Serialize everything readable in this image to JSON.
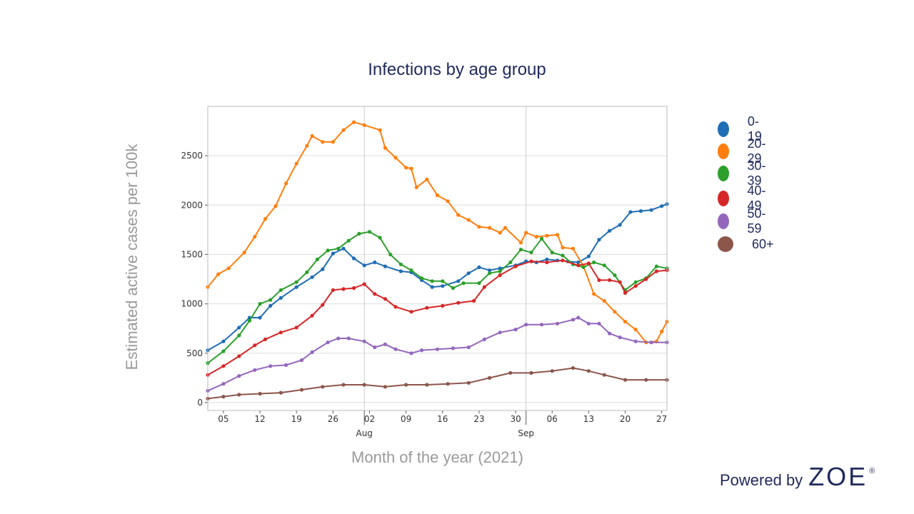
{
  "chart_data": {
    "type": "line",
    "title": "Infections by age group",
    "ylabel": "Estimated active cases per 100k",
    "xlabel": "Month of the year (2021)",
    "x_start": "2021-07-02",
    "x_end": "2021-09-28",
    "ylim": [
      -80,
      3000
    ],
    "yticks": [
      0,
      500,
      1000,
      1500,
      2000,
      2500
    ],
    "xticks": [
      {
        "date": "2021-07-05",
        "label": "05"
      },
      {
        "date": "2021-07-12",
        "label": "12"
      },
      {
        "date": "2021-07-19",
        "label": "19"
      },
      {
        "date": "2021-07-26",
        "label": "26"
      },
      {
        "date": "2021-08-02",
        "label": "02"
      },
      {
        "date": "2021-08-09",
        "label": "09"
      },
      {
        "date": "2021-08-16",
        "label": "16"
      },
      {
        "date": "2021-08-23",
        "label": "23"
      },
      {
        "date": "2021-08-30",
        "label": "30"
      },
      {
        "date": "2021-09-06",
        "label": "06"
      },
      {
        "date": "2021-09-13",
        "label": "13"
      },
      {
        "date": "2021-09-20",
        "label": "20"
      },
      {
        "date": "2021-09-27",
        "label": "27"
      }
    ],
    "month_labels": [
      {
        "date": "2021-08-01",
        "label": "Aug"
      },
      {
        "date": "2021-09-01",
        "label": "Sep"
      }
    ],
    "grid": true,
    "legend_position": "right",
    "series": [
      {
        "name": "0-19",
        "color": "#1f6db5",
        "points": [
          [
            "2021-07-02",
            530
          ],
          [
            "2021-07-05",
            620
          ],
          [
            "2021-07-08",
            760
          ],
          [
            "2021-07-10",
            860
          ],
          [
            "2021-07-12",
            860
          ],
          [
            "2021-07-14",
            980
          ],
          [
            "2021-07-16",
            1060
          ],
          [
            "2021-07-19",
            1170
          ],
          [
            "2021-07-22",
            1270
          ],
          [
            "2021-07-24",
            1350
          ],
          [
            "2021-07-26",
            1510
          ],
          [
            "2021-07-28",
            1560
          ],
          [
            "2021-07-30",
            1460
          ],
          [
            "2021-08-01",
            1390
          ],
          [
            "2021-08-03",
            1420
          ],
          [
            "2021-08-05",
            1380
          ],
          [
            "2021-08-08",
            1330
          ],
          [
            "2021-08-10",
            1320
          ],
          [
            "2021-08-12",
            1240
          ],
          [
            "2021-08-14",
            1170
          ],
          [
            "2021-08-16",
            1180
          ],
          [
            "2021-08-19",
            1230
          ],
          [
            "2021-08-21",
            1310
          ],
          [
            "2021-08-23",
            1370
          ],
          [
            "2021-08-25",
            1340
          ],
          [
            "2021-08-27",
            1360
          ],
          [
            "2021-08-30",
            1390
          ],
          [
            "2021-09-01",
            1430
          ],
          [
            "2021-09-03",
            1420
          ],
          [
            "2021-09-05",
            1450
          ],
          [
            "2021-09-07",
            1440
          ],
          [
            "2021-09-09",
            1430
          ],
          [
            "2021-09-11",
            1420
          ],
          [
            "2021-09-13",
            1480
          ],
          [
            "2021-09-15",
            1650
          ],
          [
            "2021-09-17",
            1740
          ],
          [
            "2021-09-19",
            1800
          ],
          [
            "2021-09-21",
            1930
          ],
          [
            "2021-09-23",
            1940
          ],
          [
            "2021-09-25",
            1950
          ],
          [
            "2021-09-27",
            1990
          ],
          [
            "2021-09-28",
            2010
          ]
        ]
      },
      {
        "name": "20-29",
        "color": "#ff7f0e",
        "points": [
          [
            "2021-07-02",
            1170
          ],
          [
            "2021-07-04",
            1300
          ],
          [
            "2021-07-06",
            1360
          ],
          [
            "2021-07-09",
            1520
          ],
          [
            "2021-07-11",
            1680
          ],
          [
            "2021-07-13",
            1860
          ],
          [
            "2021-07-15",
            1990
          ],
          [
            "2021-07-17",
            2220
          ],
          [
            "2021-07-19",
            2420
          ],
          [
            "2021-07-21",
            2600
          ],
          [
            "2021-07-22",
            2700
          ],
          [
            "2021-07-24",
            2640
          ],
          [
            "2021-07-26",
            2640
          ],
          [
            "2021-07-28",
            2760
          ],
          [
            "2021-07-30",
            2840
          ],
          [
            "2021-08-01",
            2810
          ],
          [
            "2021-08-04",
            2760
          ],
          [
            "2021-08-05",
            2580
          ],
          [
            "2021-08-07",
            2480
          ],
          [
            "2021-08-09",
            2380
          ],
          [
            "2021-08-10",
            2370
          ],
          [
            "2021-08-11",
            2180
          ],
          [
            "2021-08-13",
            2260
          ],
          [
            "2021-08-15",
            2100
          ],
          [
            "2021-08-17",
            2040
          ],
          [
            "2021-08-19",
            1900
          ],
          [
            "2021-08-21",
            1850
          ],
          [
            "2021-08-23",
            1780
          ],
          [
            "2021-08-25",
            1770
          ],
          [
            "2021-08-27",
            1720
          ],
          [
            "2021-08-28",
            1770
          ],
          [
            "2021-08-31",
            1620
          ],
          [
            "2021-09-01",
            1720
          ],
          [
            "2021-09-03",
            1680
          ],
          [
            "2021-09-05",
            1690
          ],
          [
            "2021-09-07",
            1700
          ],
          [
            "2021-09-08",
            1570
          ],
          [
            "2021-09-10",
            1560
          ],
          [
            "2021-09-12",
            1380
          ],
          [
            "2021-09-14",
            1100
          ],
          [
            "2021-09-16",
            1030
          ],
          [
            "2021-09-18",
            920
          ],
          [
            "2021-09-20",
            820
          ],
          [
            "2021-09-22",
            740
          ],
          [
            "2021-09-24",
            610
          ],
          [
            "2021-09-26",
            620
          ],
          [
            "2021-09-27",
            720
          ],
          [
            "2021-09-28",
            820
          ]
        ]
      },
      {
        "name": "30-39",
        "color": "#2ca02c",
        "points": [
          [
            "2021-07-02",
            400
          ],
          [
            "2021-07-05",
            520
          ],
          [
            "2021-07-08",
            680
          ],
          [
            "2021-07-10",
            830
          ],
          [
            "2021-07-12",
            1000
          ],
          [
            "2021-07-14",
            1040
          ],
          [
            "2021-07-16",
            1140
          ],
          [
            "2021-07-19",
            1220
          ],
          [
            "2021-07-21",
            1320
          ],
          [
            "2021-07-23",
            1450
          ],
          [
            "2021-07-25",
            1540
          ],
          [
            "2021-07-27",
            1560
          ],
          [
            "2021-07-29",
            1640
          ],
          [
            "2021-07-31",
            1710
          ],
          [
            "2021-08-02",
            1730
          ],
          [
            "2021-08-04",
            1670
          ],
          [
            "2021-08-06",
            1500
          ],
          [
            "2021-08-08",
            1400
          ],
          [
            "2021-08-10",
            1340
          ],
          [
            "2021-08-12",
            1260
          ],
          [
            "2021-08-14",
            1230
          ],
          [
            "2021-08-16",
            1230
          ],
          [
            "2021-08-18",
            1160
          ],
          [
            "2021-08-20",
            1210
          ],
          [
            "2021-08-23",
            1210
          ],
          [
            "2021-08-25",
            1310
          ],
          [
            "2021-08-27",
            1330
          ],
          [
            "2021-08-29",
            1420
          ],
          [
            "2021-08-31",
            1550
          ],
          [
            "2021-09-02",
            1520
          ],
          [
            "2021-09-04",
            1660
          ],
          [
            "2021-09-06",
            1520
          ],
          [
            "2021-09-08",
            1490
          ],
          [
            "2021-09-10",
            1400
          ],
          [
            "2021-09-12",
            1370
          ],
          [
            "2021-09-14",
            1420
          ],
          [
            "2021-09-16",
            1390
          ],
          [
            "2021-09-18",
            1290
          ],
          [
            "2021-09-20",
            1140
          ],
          [
            "2021-09-22",
            1220
          ],
          [
            "2021-09-24",
            1260
          ],
          [
            "2021-09-26",
            1380
          ],
          [
            "2021-09-28",
            1360
          ]
        ]
      },
      {
        "name": "40-49",
        "color": "#d62728",
        "points": [
          [
            "2021-07-02",
            280
          ],
          [
            "2021-07-05",
            370
          ],
          [
            "2021-07-08",
            470
          ],
          [
            "2021-07-11",
            580
          ],
          [
            "2021-07-13",
            640
          ],
          [
            "2021-07-16",
            710
          ],
          [
            "2021-07-19",
            760
          ],
          [
            "2021-07-22",
            880
          ],
          [
            "2021-07-24",
            990
          ],
          [
            "2021-07-26",
            1140
          ],
          [
            "2021-07-28",
            1150
          ],
          [
            "2021-07-30",
            1160
          ],
          [
            "2021-08-01",
            1200
          ],
          [
            "2021-08-03",
            1100
          ],
          [
            "2021-08-05",
            1050
          ],
          [
            "2021-08-07",
            970
          ],
          [
            "2021-08-10",
            920
          ],
          [
            "2021-08-13",
            960
          ],
          [
            "2021-08-16",
            980
          ],
          [
            "2021-08-19",
            1010
          ],
          [
            "2021-08-22",
            1030
          ],
          [
            "2021-08-24",
            1170
          ],
          [
            "2021-08-27",
            1290
          ],
          [
            "2021-08-30",
            1380
          ],
          [
            "2021-09-02",
            1430
          ],
          [
            "2021-09-05",
            1420
          ],
          [
            "2021-09-08",
            1440
          ],
          [
            "2021-09-11",
            1390
          ],
          [
            "2021-09-13",
            1410
          ],
          [
            "2021-09-15",
            1240
          ],
          [
            "2021-09-17",
            1240
          ],
          [
            "2021-09-19",
            1220
          ],
          [
            "2021-09-20",
            1110
          ],
          [
            "2021-09-22",
            1180
          ],
          [
            "2021-09-24",
            1250
          ],
          [
            "2021-09-26",
            1330
          ],
          [
            "2021-09-28",
            1340
          ]
        ]
      },
      {
        "name": "50-59",
        "color": "#9467bd",
        "points": [
          [
            "2021-07-02",
            120
          ],
          [
            "2021-07-05",
            190
          ],
          [
            "2021-07-08",
            270
          ],
          [
            "2021-07-11",
            330
          ],
          [
            "2021-07-14",
            370
          ],
          [
            "2021-07-17",
            380
          ],
          [
            "2021-07-20",
            430
          ],
          [
            "2021-07-22",
            510
          ],
          [
            "2021-07-25",
            610
          ],
          [
            "2021-07-27",
            650
          ],
          [
            "2021-07-29",
            650
          ],
          [
            "2021-08-01",
            620
          ],
          [
            "2021-08-03",
            560
          ],
          [
            "2021-08-05",
            590
          ],
          [
            "2021-08-07",
            540
          ],
          [
            "2021-08-10",
            500
          ],
          [
            "2021-08-12",
            530
          ],
          [
            "2021-08-15",
            540
          ],
          [
            "2021-08-18",
            550
          ],
          [
            "2021-08-21",
            560
          ],
          [
            "2021-08-24",
            640
          ],
          [
            "2021-08-27",
            710
          ],
          [
            "2021-08-30",
            740
          ],
          [
            "2021-09-01",
            790
          ],
          [
            "2021-09-04",
            790
          ],
          [
            "2021-09-07",
            800
          ],
          [
            "2021-09-10",
            840
          ],
          [
            "2021-09-11",
            860
          ],
          [
            "2021-09-13",
            800
          ],
          [
            "2021-09-15",
            800
          ],
          [
            "2021-09-17",
            700
          ],
          [
            "2021-09-19",
            660
          ],
          [
            "2021-09-22",
            620
          ],
          [
            "2021-09-25",
            610
          ],
          [
            "2021-09-28",
            610
          ]
        ]
      },
      {
        "name": "60+",
        "color": "#8c564b",
        "points": [
          [
            "2021-07-02",
            40
          ],
          [
            "2021-07-05",
            60
          ],
          [
            "2021-07-08",
            80
          ],
          [
            "2021-07-12",
            90
          ],
          [
            "2021-07-16",
            100
          ],
          [
            "2021-07-20",
            130
          ],
          [
            "2021-07-24",
            160
          ],
          [
            "2021-07-28",
            180
          ],
          [
            "2021-08-01",
            180
          ],
          [
            "2021-08-05",
            160
          ],
          [
            "2021-08-09",
            180
          ],
          [
            "2021-08-13",
            180
          ],
          [
            "2021-08-17",
            190
          ],
          [
            "2021-08-21",
            200
          ],
          [
            "2021-08-25",
            250
          ],
          [
            "2021-08-29",
            300
          ],
          [
            "2021-09-02",
            300
          ],
          [
            "2021-09-06",
            320
          ],
          [
            "2021-09-10",
            350
          ],
          [
            "2021-09-13",
            320
          ],
          [
            "2021-09-16",
            280
          ],
          [
            "2021-09-20",
            230
          ],
          [
            "2021-09-24",
            230
          ],
          [
            "2021-09-28",
            230
          ]
        ]
      }
    ]
  },
  "footer": {
    "powered_by": "Powered by",
    "brand": "ZOE",
    "registered": "®"
  }
}
